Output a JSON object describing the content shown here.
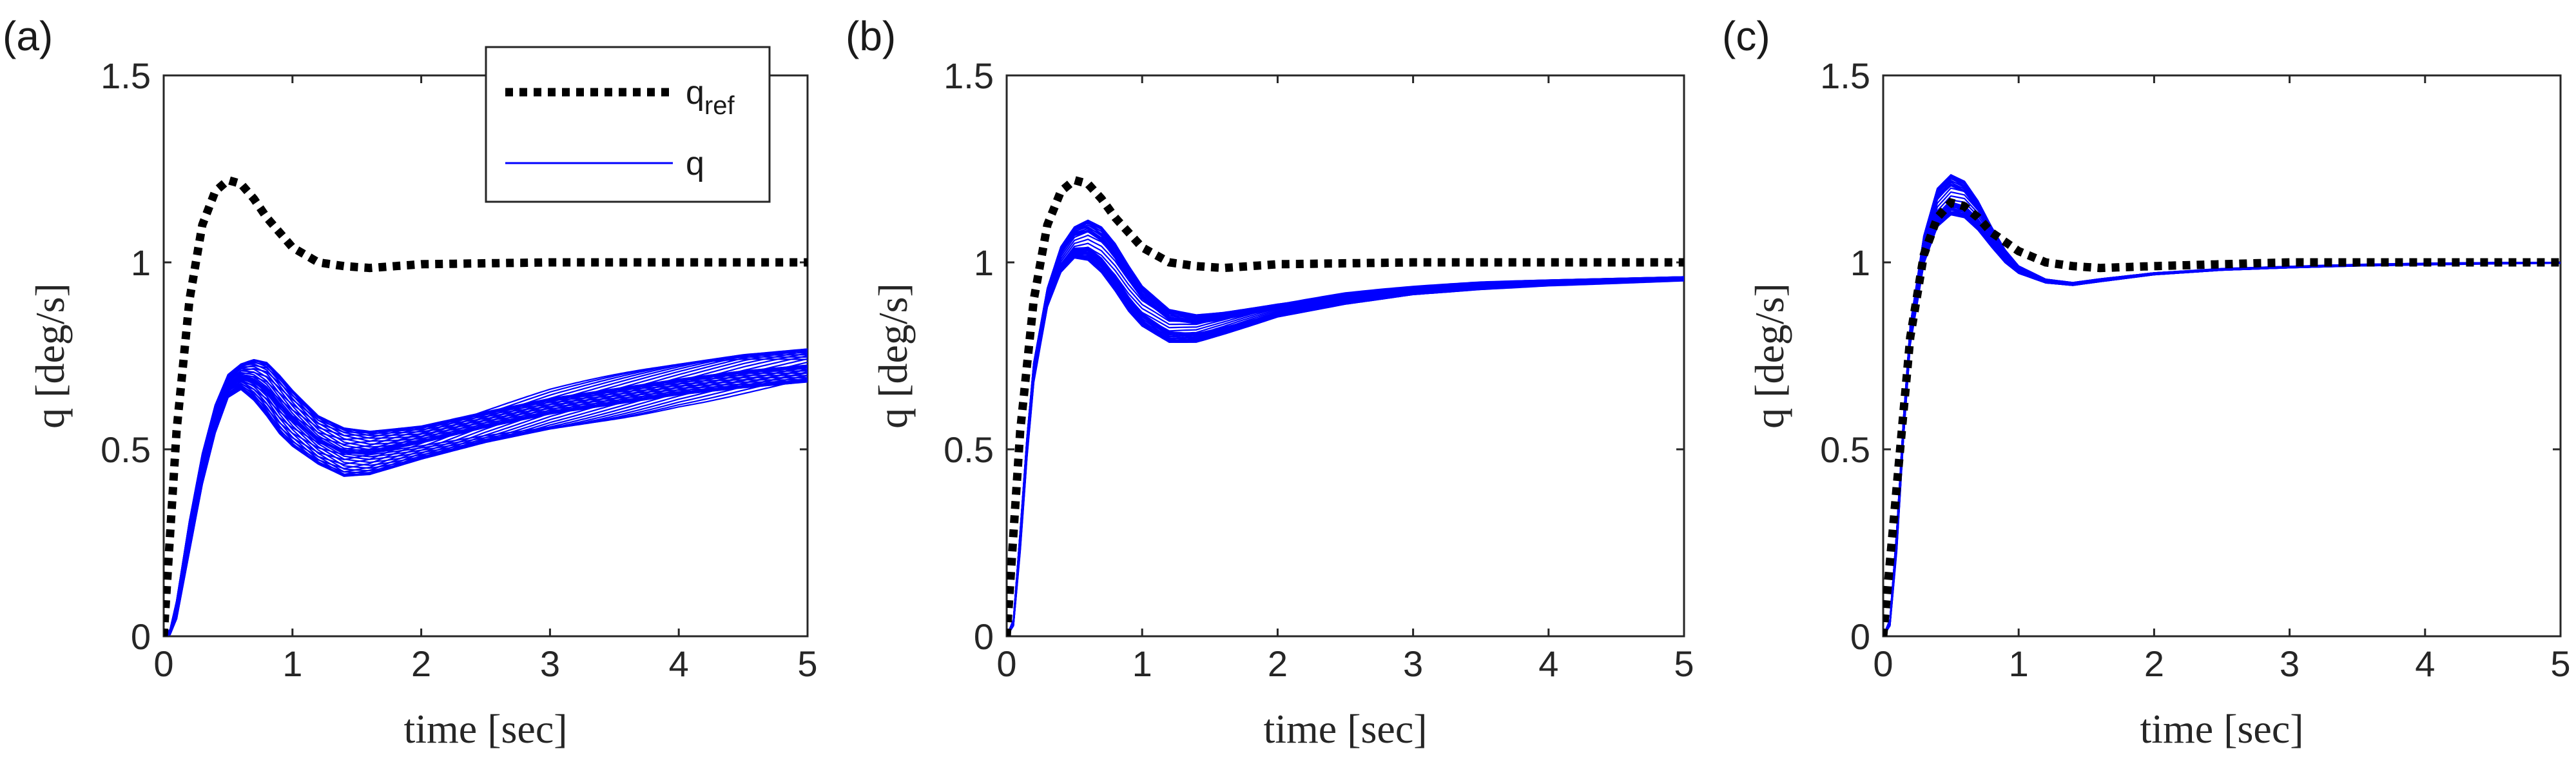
{
  "chart_data": [
    {
      "type": "line",
      "panel_label": "(a)",
      "xlabel": "time [sec]",
      "ylabel": "q [deg/s]",
      "xlim": [
        0,
        5
      ],
      "ylim": [
        0,
        1.5
      ],
      "xticks": [
        "0",
        "1",
        "2",
        "3",
        "4",
        "5"
      ],
      "yticks": [
        "0",
        "0.5",
        "1",
        "1.5"
      ],
      "grid": false,
      "legend": {
        "placement": "top-center",
        "entries": [
          {
            "base": "q",
            "sub": "ref",
            "color": "#000000",
            "style": "dotted"
          },
          {
            "base": "q",
            "sub": "",
            "color": "#0000ff",
            "style": "solid"
          }
        ]
      },
      "series": [
        {
          "name": "q_ref",
          "color": "#000000",
          "style": "dotted",
          "x": [
            0,
            0.1,
            0.2,
            0.3,
            0.4,
            0.5,
            0.6,
            0.7,
            0.8,
            1.0,
            1.2,
            1.4,
            1.6,
            2.0,
            3.0,
            4.0,
            5.0
          ],
          "y": [
            0,
            0.55,
            0.9,
            1.1,
            1.19,
            1.22,
            1.21,
            1.17,
            1.12,
            1.04,
            1.0,
            0.99,
            0.985,
            0.995,
            1.0,
            1.0,
            1.0
          ]
        },
        {
          "name": "q",
          "color": "#0000ff",
          "style": "solid",
          "x": [
            0,
            0.05,
            0.1,
            0.2,
            0.3,
            0.4,
            0.5,
            0.6,
            0.7,
            0.8,
            0.9,
            1.0,
            1.2,
            1.4,
            1.6,
            2.0,
            2.5,
            3.0,
            3.5,
            4.0,
            4.5,
            5.0
          ],
          "y_upper": [
            0,
            0.02,
            0.1,
            0.32,
            0.5,
            0.63,
            0.71,
            0.74,
            0.76,
            0.76,
            0.73,
            0.69,
            0.62,
            0.59,
            0.58,
            0.59,
            0.63,
            0.67,
            0.7,
            0.73,
            0.76,
            0.78
          ],
          "y_lower": [
            0,
            0.0,
            0.03,
            0.2,
            0.38,
            0.52,
            0.62,
            0.64,
            0.6,
            0.55,
            0.5,
            0.47,
            0.43,
            0.4,
            0.41,
            0.46,
            0.51,
            0.55,
            0.58,
            0.61,
            0.63,
            0.65
          ]
        }
      ]
    },
    {
      "type": "line",
      "panel_label": "(b)",
      "xlabel": "time [sec]",
      "ylabel": "q [deg/s]",
      "xlim": [
        0,
        5
      ],
      "ylim": [
        0,
        1.5
      ],
      "xticks": [
        "0",
        "1",
        "2",
        "3",
        "4",
        "5"
      ],
      "yticks": [
        "0",
        "0.5",
        "1",
        "1.5"
      ],
      "grid": false,
      "series": [
        {
          "name": "q_ref",
          "color": "#000000",
          "style": "dotted",
          "x": [
            0,
            0.1,
            0.2,
            0.3,
            0.4,
            0.5,
            0.6,
            0.7,
            0.8,
            1.0,
            1.2,
            1.4,
            1.6,
            2.0,
            3.0,
            4.0,
            5.0
          ],
          "y": [
            0,
            0.55,
            0.9,
            1.1,
            1.19,
            1.22,
            1.21,
            1.17,
            1.12,
            1.04,
            1.0,
            0.99,
            0.985,
            0.995,
            1.0,
            1.0,
            1.0
          ]
        },
        {
          "name": "q",
          "color": "#0000ff",
          "style": "solid",
          "x": [
            0,
            0.05,
            0.1,
            0.15,
            0.2,
            0.3,
            0.4,
            0.5,
            0.6,
            0.7,
            0.8,
            0.9,
            1.0,
            1.2,
            1.4,
            1.6,
            2.0,
            2.5,
            3.0,
            3.5,
            4.0,
            4.5,
            5.0
          ],
          "y_upper": [
            0,
            0.05,
            0.3,
            0.55,
            0.75,
            0.95,
            1.07,
            1.13,
            1.16,
            1.15,
            1.11,
            1.05,
            0.99,
            0.92,
            0.9,
            0.9,
            0.91,
            0.93,
            0.94,
            0.95,
            0.955,
            0.96,
            0.965
          ],
          "y_lower": [
            0,
            0.02,
            0.2,
            0.45,
            0.65,
            0.85,
            0.93,
            0.96,
            0.94,
            0.9,
            0.85,
            0.8,
            0.77,
            0.74,
            0.75,
            0.78,
            0.84,
            0.88,
            0.91,
            0.925,
            0.935,
            0.94,
            0.945
          ]
        }
      ]
    },
    {
      "type": "line",
      "panel_label": "(c)",
      "xlabel": "time [sec]",
      "ylabel": "q [deg/s]",
      "xlim": [
        0,
        5
      ],
      "ylim": [
        0,
        1.5
      ],
      "xticks": [
        "0",
        "1",
        "2",
        "3",
        "4",
        "5"
      ],
      "yticks": [
        "0",
        "0.5",
        "1",
        "1.5"
      ],
      "grid": false,
      "series": [
        {
          "name": "q_ref",
          "color": "#000000",
          "style": "dotted",
          "x": [
            0,
            0.1,
            0.2,
            0.3,
            0.4,
            0.5,
            0.6,
            0.7,
            0.8,
            1.0,
            1.2,
            1.4,
            1.6,
            2.0,
            3.0,
            4.0,
            5.0
          ],
          "y": [
            0,
            0.4,
            0.8,
            1.02,
            1.12,
            1.16,
            1.15,
            1.12,
            1.08,
            1.03,
            1.0,
            0.99,
            0.985,
            0.99,
            1.0,
            1.0,
            1.0
          ]
        },
        {
          "name": "q",
          "color": "#0000ff",
          "style": "solid",
          "x": [
            0,
            0.05,
            0.1,
            0.15,
            0.2,
            0.3,
            0.4,
            0.5,
            0.6,
            0.7,
            0.8,
            0.9,
            1.0,
            1.2,
            1.4,
            1.6,
            2.0,
            2.5,
            3.0,
            3.5,
            4.0,
            4.5,
            5.0
          ],
          "y_upper": [
            0,
            0.05,
            0.3,
            0.6,
            0.85,
            1.1,
            1.24,
            1.28,
            1.26,
            1.2,
            1.12,
            1.05,
            1.0,
            0.96,
            0.95,
            0.96,
            0.975,
            0.985,
            0.99,
            0.995,
            0.998,
            1.0,
            1.0
          ],
          "y_lower": [
            0,
            0.02,
            0.2,
            0.5,
            0.75,
            0.95,
            1.03,
            1.06,
            1.06,
            1.04,
            1.01,
            0.98,
            0.96,
            0.94,
            0.935,
            0.945,
            0.965,
            0.978,
            0.985,
            0.99,
            0.993,
            0.995,
            0.997
          ]
        }
      ]
    }
  ]
}
